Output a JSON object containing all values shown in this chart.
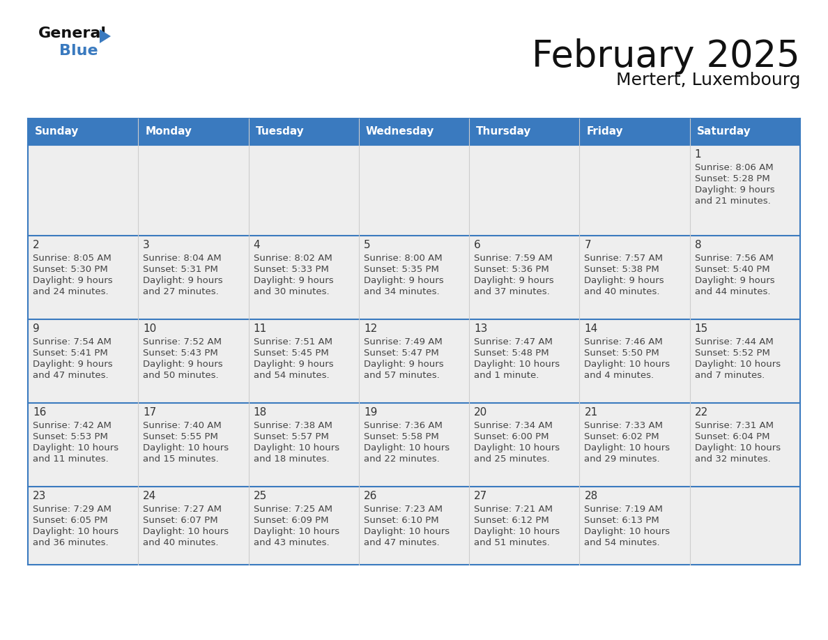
{
  "title": "February 2025",
  "subtitle": "Mertert, Luxembourg",
  "days_of_week": [
    "Sunday",
    "Monday",
    "Tuesday",
    "Wednesday",
    "Thursday",
    "Friday",
    "Saturday"
  ],
  "header_bg": "#3a7abf",
  "header_text": "#ffffff",
  "cell_bg": "#eeeeee",
  "cell_bg_white": "#ffffff",
  "day_number_color": "#333333",
  "text_color": "#444444",
  "border_color": "#3a7abf",
  "divider_color": "#3a7abf",
  "calendar_data": [
    [
      {
        "day": null,
        "sunrise": null,
        "sunset": null,
        "daylight": null
      },
      {
        "day": null,
        "sunrise": null,
        "sunset": null,
        "daylight": null
      },
      {
        "day": null,
        "sunrise": null,
        "sunset": null,
        "daylight": null
      },
      {
        "day": null,
        "sunrise": null,
        "sunset": null,
        "daylight": null
      },
      {
        "day": null,
        "sunrise": null,
        "sunset": null,
        "daylight": null
      },
      {
        "day": null,
        "sunrise": null,
        "sunset": null,
        "daylight": null
      },
      {
        "day": 1,
        "sunrise": "8:06 AM",
        "sunset": "5:28 PM",
        "daylight": "9 hours\nand 21 minutes."
      }
    ],
    [
      {
        "day": 2,
        "sunrise": "8:05 AM",
        "sunset": "5:30 PM",
        "daylight": "9 hours\nand 24 minutes."
      },
      {
        "day": 3,
        "sunrise": "8:04 AM",
        "sunset": "5:31 PM",
        "daylight": "9 hours\nand 27 minutes."
      },
      {
        "day": 4,
        "sunrise": "8:02 AM",
        "sunset": "5:33 PM",
        "daylight": "9 hours\nand 30 minutes."
      },
      {
        "day": 5,
        "sunrise": "8:00 AM",
        "sunset": "5:35 PM",
        "daylight": "9 hours\nand 34 minutes."
      },
      {
        "day": 6,
        "sunrise": "7:59 AM",
        "sunset": "5:36 PM",
        "daylight": "9 hours\nand 37 minutes."
      },
      {
        "day": 7,
        "sunrise": "7:57 AM",
        "sunset": "5:38 PM",
        "daylight": "9 hours\nand 40 minutes."
      },
      {
        "day": 8,
        "sunrise": "7:56 AM",
        "sunset": "5:40 PM",
        "daylight": "9 hours\nand 44 minutes."
      }
    ],
    [
      {
        "day": 9,
        "sunrise": "7:54 AM",
        "sunset": "5:41 PM",
        "daylight": "9 hours\nand 47 minutes."
      },
      {
        "day": 10,
        "sunrise": "7:52 AM",
        "sunset": "5:43 PM",
        "daylight": "9 hours\nand 50 minutes."
      },
      {
        "day": 11,
        "sunrise": "7:51 AM",
        "sunset": "5:45 PM",
        "daylight": "9 hours\nand 54 minutes."
      },
      {
        "day": 12,
        "sunrise": "7:49 AM",
        "sunset": "5:47 PM",
        "daylight": "9 hours\nand 57 minutes."
      },
      {
        "day": 13,
        "sunrise": "7:47 AM",
        "sunset": "5:48 PM",
        "daylight": "10 hours\nand 1 minute."
      },
      {
        "day": 14,
        "sunrise": "7:46 AM",
        "sunset": "5:50 PM",
        "daylight": "10 hours\nand 4 minutes."
      },
      {
        "day": 15,
        "sunrise": "7:44 AM",
        "sunset": "5:52 PM",
        "daylight": "10 hours\nand 7 minutes."
      }
    ],
    [
      {
        "day": 16,
        "sunrise": "7:42 AM",
        "sunset": "5:53 PM",
        "daylight": "10 hours\nand 11 minutes."
      },
      {
        "day": 17,
        "sunrise": "7:40 AM",
        "sunset": "5:55 PM",
        "daylight": "10 hours\nand 15 minutes."
      },
      {
        "day": 18,
        "sunrise": "7:38 AM",
        "sunset": "5:57 PM",
        "daylight": "10 hours\nand 18 minutes."
      },
      {
        "day": 19,
        "sunrise": "7:36 AM",
        "sunset": "5:58 PM",
        "daylight": "10 hours\nand 22 minutes."
      },
      {
        "day": 20,
        "sunrise": "7:34 AM",
        "sunset": "6:00 PM",
        "daylight": "10 hours\nand 25 minutes."
      },
      {
        "day": 21,
        "sunrise": "7:33 AM",
        "sunset": "6:02 PM",
        "daylight": "10 hours\nand 29 minutes."
      },
      {
        "day": 22,
        "sunrise": "7:31 AM",
        "sunset": "6:04 PM",
        "daylight": "10 hours\nand 32 minutes."
      }
    ],
    [
      {
        "day": 23,
        "sunrise": "7:29 AM",
        "sunset": "6:05 PM",
        "daylight": "10 hours\nand 36 minutes."
      },
      {
        "day": 24,
        "sunrise": "7:27 AM",
        "sunset": "6:07 PM",
        "daylight": "10 hours\nand 40 minutes."
      },
      {
        "day": 25,
        "sunrise": "7:25 AM",
        "sunset": "6:09 PM",
        "daylight": "10 hours\nand 43 minutes."
      },
      {
        "day": 26,
        "sunrise": "7:23 AM",
        "sunset": "6:10 PM",
        "daylight": "10 hours\nand 47 minutes."
      },
      {
        "day": 27,
        "sunrise": "7:21 AM",
        "sunset": "6:12 PM",
        "daylight": "10 hours\nand 51 minutes."
      },
      {
        "day": 28,
        "sunrise": "7:19 AM",
        "sunset": "6:13 PM",
        "daylight": "10 hours\nand 54 minutes."
      },
      {
        "day": null,
        "sunrise": null,
        "sunset": null,
        "daylight": null
      }
    ]
  ]
}
